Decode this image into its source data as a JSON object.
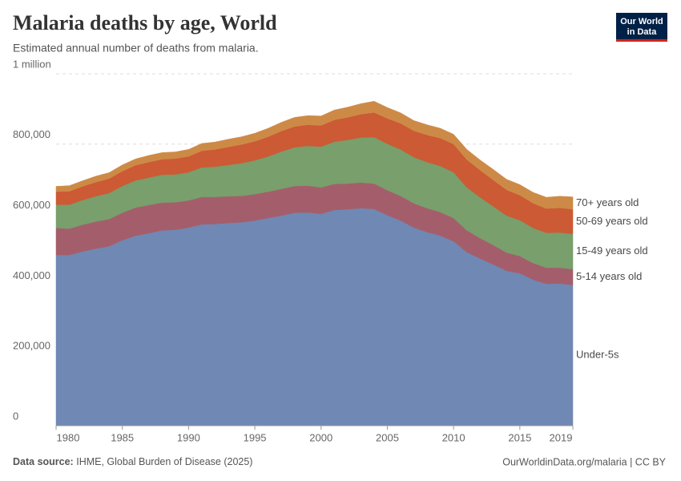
{
  "header": {
    "logo": [
      "Our World",
      "in Data"
    ]
  },
  "chart_data": {
    "type": "stacked-area",
    "title": "Malaria deaths by age, World",
    "subtitle": "Estimated annual number of deaths from malaria.",
    "x": [
      1980,
      1981,
      1982,
      1983,
      1984,
      1985,
      1986,
      1987,
      1988,
      1989,
      1990,
      1991,
      1992,
      1993,
      1994,
      1995,
      1996,
      1997,
      1998,
      1999,
      2000,
      2001,
      2002,
      2003,
      2004,
      2005,
      2006,
      2007,
      2008,
      2009,
      2010,
      2011,
      2012,
      2013,
      2014,
      2015,
      2016,
      2017,
      2018,
      2019
    ],
    "xlim": [
      1980,
      2019
    ],
    "xticks": [
      1980,
      1985,
      1990,
      1995,
      2000,
      2005,
      2010,
      2015,
      2019
    ],
    "ylim": [
      0,
      1000000
    ],
    "yticks": [
      0,
      {
        "value": 200000,
        "label": "200,000"
      },
      {
        "value": 400000,
        "label": "400,000"
      },
      {
        "value": 600000,
        "label": "600,000"
      },
      {
        "value": 800000,
        "label": "800,000"
      },
      {
        "value": 1000000,
        "label": "1 million"
      }
    ],
    "grid": true,
    "series": [
      {
        "name": "Under-5s",
        "color": "#7088b4",
        "values": [
          485000,
          485000,
          495000,
          503000,
          510000,
          527000,
          540000,
          547000,
          555000,
          557000,
          563000,
          572000,
          573000,
          576000,
          578000,
          583000,
          590000,
          597000,
          605000,
          606000,
          602000,
          613000,
          615000,
          618000,
          616000,
          598000,
          583000,
          563000,
          550000,
          540000,
          524000,
          493000,
          475000,
          458000,
          440000,
          433000,
          415000,
          403000,
          404000,
          400000
        ]
      },
      {
        "name": "5-14 years old",
        "color": "#a45e6b",
        "values": [
          77000,
          75000,
          76000,
          77000,
          77000,
          78000,
          80000,
          80000,
          79000,
          78000,
          77000,
          78000,
          77000,
          76000,
          75000,
          75000,
          75000,
          76000,
          76000,
          76000,
          75000,
          74000,
          73000,
          73000,
          72000,
          71000,
          70000,
          69000,
          68000,
          67000,
          66000,
          62000,
          58000,
          55000,
          52000,
          49000,
          47000,
          46000,
          45000,
          45000
        ]
      },
      {
        "name": "15-49 years old",
        "color": "#789f6c",
        "values": [
          66000,
          68000,
          70000,
          72000,
          74000,
          76000,
          77000,
          78000,
          79000,
          79000,
          80000,
          84000,
          86000,
          89000,
          93000,
          96000,
          100000,
          106000,
          110000,
          113000,
          116000,
          120000,
          124000,
          128000,
          132000,
          132000,
          132000,
          131000,
          131000,
          131000,
          130000,
          122000,
          116000,
          110000,
          105000,
          102000,
          100000,
          99000,
          100000,
          100000
        ]
      },
      {
        "name": "50-69 years old",
        "color": "#cc5a34",
        "values": [
          37000,
          38000,
          39000,
          40000,
          41000,
          42000,
          43000,
          44000,
          44000,
          45000,
          45000,
          47000,
          49000,
          51000,
          53000,
          54000,
          56000,
          58000,
          59000,
          60000,
          60000,
          62000,
          64000,
          66000,
          70000,
          72000,
          74000,
          75000,
          77000,
          79000,
          80000,
          79000,
          77000,
          75000,
          73000,
          71000,
          70000,
          69000,
          70000,
          70000
        ]
      },
      {
        "name": "70+ years old",
        "color": "#cd8a47",
        "values": [
          15000,
          16000,
          16000,
          17000,
          17000,
          18000,
          18000,
          19000,
          19000,
          19000,
          20000,
          21000,
          21000,
          22000,
          22000,
          23000,
          24000,
          25000,
          26000,
          26000,
          27000,
          28000,
          29000,
          30000,
          32000,
          31000,
          30000,
          29000,
          29000,
          28000,
          28000,
          29000,
          29000,
          30000,
          30000,
          30000,
          31000,
          32000,
          33000,
          35000
        ]
      }
    ],
    "source_label": "Data source:",
    "source": "IHME, Global Burden of Disease (2025)",
    "credit": "OurWorldinData.org/malaria | CC BY"
  }
}
